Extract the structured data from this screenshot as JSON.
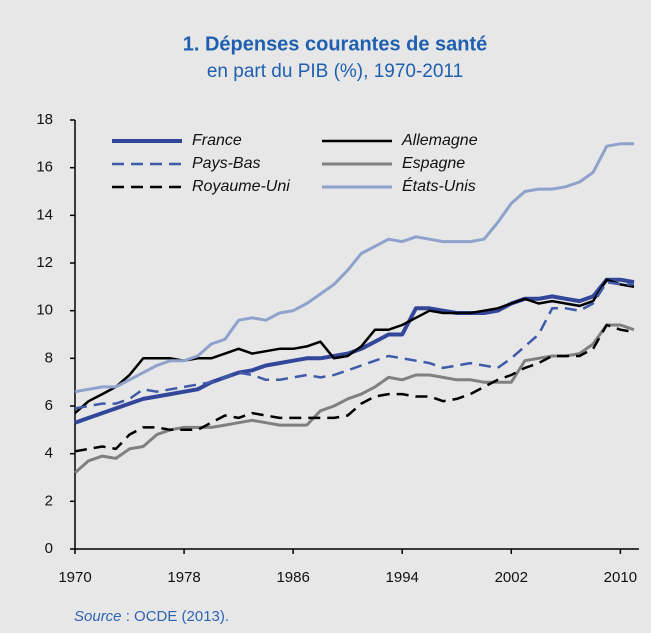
{
  "chart_data": {
    "type": "line",
    "title": "1. Dépenses courantes de santé",
    "subtitle": "en part du PIB (%), 1970-2011",
    "source_label": "Source",
    "source_text": " : OCDE (2013).",
    "x": [
      1970,
      1971,
      1972,
      1973,
      1974,
      1975,
      1976,
      1977,
      1978,
      1979,
      1980,
      1981,
      1982,
      1983,
      1984,
      1985,
      1986,
      1987,
      1988,
      1989,
      1990,
      1991,
      1992,
      1993,
      1994,
      1995,
      1996,
      1997,
      1998,
      1999,
      2000,
      2001,
      2002,
      2003,
      2004,
      2005,
      2006,
      2007,
      2008,
      2009,
      2010,
      2011
    ],
    "xlim": [
      1970,
      2011
    ],
    "xticks": [
      1970,
      1978,
      1986,
      1994,
      2002,
      2010
    ],
    "ylim": [
      0,
      18
    ],
    "yticks": [
      0,
      2,
      4,
      6,
      8,
      10,
      12,
      14,
      16,
      18
    ],
    "legend_columns": 2,
    "series": [
      {
        "name": "France",
        "color": "#33479a",
        "dash": "solid",
        "width": 4,
        "values": [
          5.3,
          5.5,
          5.7,
          5.9,
          6.1,
          6.3,
          6.4,
          6.5,
          6.6,
          6.7,
          7.0,
          7.2,
          7.4,
          7.5,
          7.7,
          7.8,
          7.9,
          8.0,
          8.0,
          8.1,
          8.2,
          8.4,
          8.7,
          9.0,
          9.0,
          10.1,
          10.1,
          10.0,
          9.9,
          9.9,
          9.9,
          10.0,
          10.3,
          10.5,
          10.5,
          10.6,
          10.5,
          10.4,
          10.6,
          11.3,
          11.3,
          11.2
        ]
      },
      {
        "name": "Allemagne",
        "color": "#000000",
        "dash": "solid",
        "width": 2.5,
        "values": [
          5.7,
          6.2,
          6.5,
          6.8,
          7.3,
          8.0,
          8.0,
          8.0,
          7.9,
          8.0,
          8.0,
          8.2,
          8.4,
          8.2,
          8.3,
          8.4,
          8.4,
          8.5,
          8.7,
          8.0,
          8.1,
          8.5,
          9.2,
          9.2,
          9.4,
          9.7,
          10.0,
          9.9,
          9.9,
          9.9,
          10.0,
          10.1,
          10.3,
          10.5,
          10.3,
          10.4,
          10.3,
          10.2,
          10.4,
          11.3,
          11.1,
          11.0
        ]
      },
      {
        "name": "Pays-Bas",
        "color": "#3e5aa8",
        "dash": "dashed",
        "width": 2.5,
        "values": [
          5.9,
          6.0,
          6.1,
          6.1,
          6.3,
          6.7,
          6.6,
          6.7,
          6.8,
          6.9,
          7.0,
          7.2,
          7.4,
          7.3,
          7.1,
          7.1,
          7.2,
          7.3,
          7.2,
          7.3,
          7.5,
          7.7,
          7.9,
          8.1,
          8.0,
          7.9,
          7.8,
          7.6,
          7.7,
          7.8,
          7.7,
          7.6,
          8.0,
          8.5,
          9.0,
          10.1,
          10.1,
          10.0,
          10.3,
          11.2,
          11.1,
          11.1
        ]
      },
      {
        "name": "Espagne",
        "color": "#808080",
        "dash": "solid",
        "width": 3,
        "values": [
          3.2,
          3.7,
          3.9,
          3.8,
          4.2,
          4.3,
          4.8,
          5.0,
          5.1,
          5.1,
          5.1,
          5.2,
          5.3,
          5.4,
          5.3,
          5.2,
          5.2,
          5.2,
          5.8,
          6.0,
          6.3,
          6.5,
          6.8,
          7.2,
          7.1,
          7.3,
          7.3,
          7.2,
          7.1,
          7.1,
          7.0,
          7.0,
          7.0,
          7.9,
          8.0,
          8.1,
          8.1,
          8.2,
          8.6,
          9.4,
          9.4,
          9.2
        ]
      },
      {
        "name": "Royaume-Uni",
        "color": "#000000",
        "dash": "dashed",
        "width": 2.5,
        "values": [
          4.1,
          4.2,
          4.3,
          4.2,
          4.8,
          5.1,
          5.1,
          5.0,
          5.0,
          5.0,
          5.3,
          5.6,
          5.5,
          5.7,
          5.6,
          5.5,
          5.5,
          5.5,
          5.5,
          5.5,
          5.6,
          6.1,
          6.4,
          6.5,
          6.5,
          6.4,
          6.4,
          6.2,
          6.3,
          6.5,
          6.8,
          7.1,
          7.3,
          7.6,
          7.8,
          8.1,
          8.1,
          8.1,
          8.4,
          9.4,
          9.2,
          9.1
        ]
      },
      {
        "name": "États-Unis",
        "color": "#8ea2cc",
        "dash": "solid",
        "width": 3,
        "values": [
          6.6,
          6.7,
          6.8,
          6.8,
          7.1,
          7.4,
          7.7,
          7.9,
          7.9,
          8.1,
          8.6,
          8.8,
          9.6,
          9.7,
          9.6,
          9.9,
          10.0,
          10.3,
          10.7,
          11.1,
          11.7,
          12.4,
          12.7,
          13.0,
          12.9,
          13.1,
          13.0,
          12.9,
          12.9,
          12.9,
          13.0,
          13.7,
          14.5,
          15.0,
          15.1,
          15.1,
          15.2,
          15.4,
          15.8,
          16.9,
          17.0,
          17.0
        ]
      }
    ]
  }
}
